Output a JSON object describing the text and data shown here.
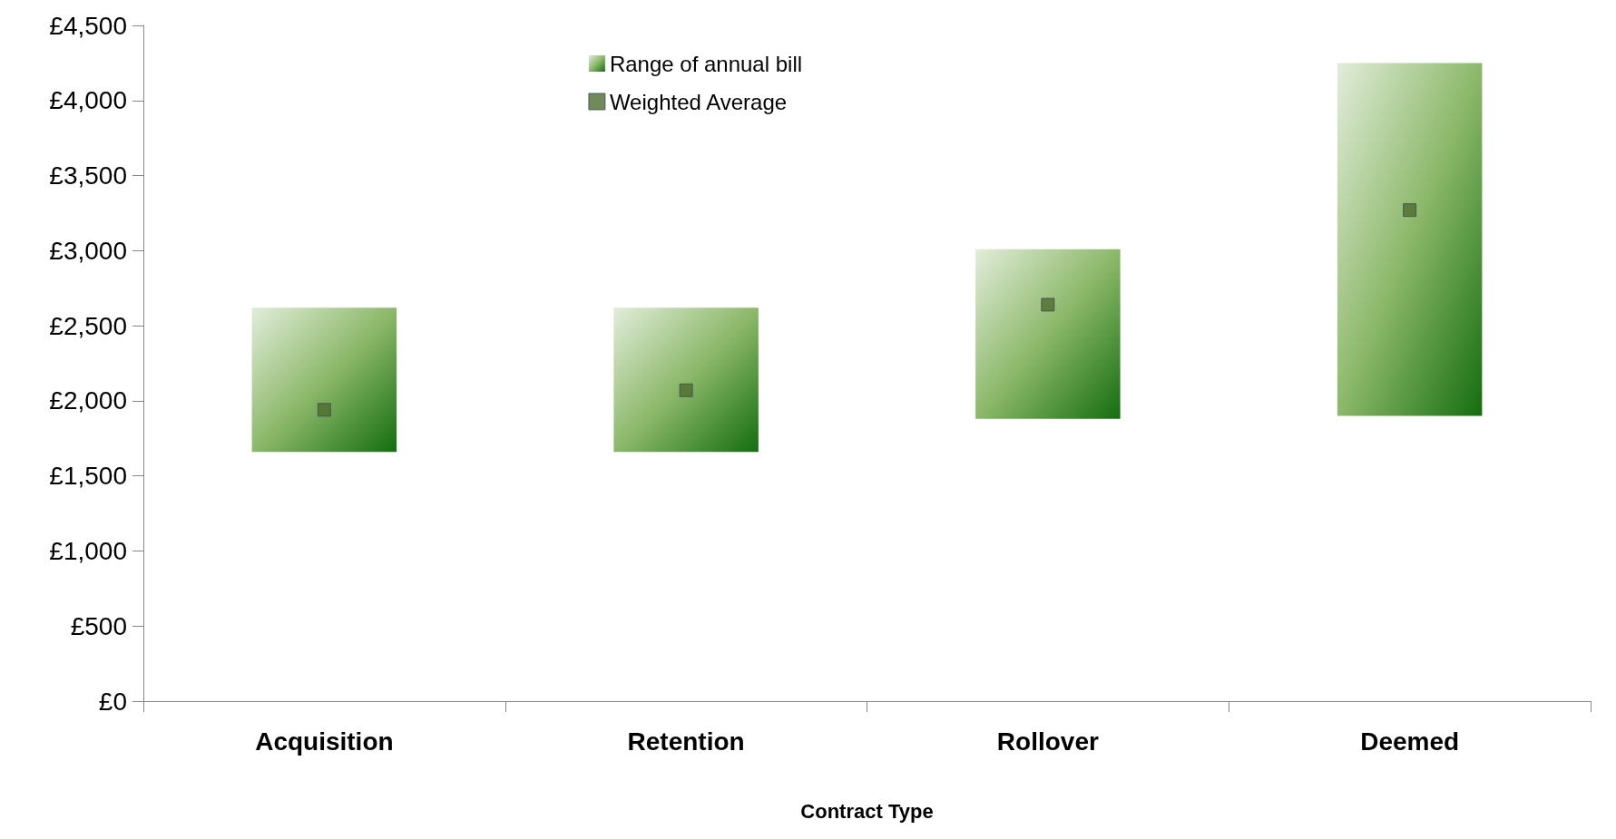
{
  "chart_data": {
    "type": "bar",
    "xlabel": "Contract Type",
    "categories": [
      "Acquisition",
      "Retention",
      "Rollover",
      "Deemed"
    ],
    "series": [
      {
        "name": "Range of annual bill",
        "color": "#8cb86a",
        "base": [
          1660,
          1660,
          1880,
          1900
        ],
        "values": [
          960,
          960,
          1130,
          2350
        ]
      },
      {
        "name": "Weighted Average",
        "type": "scatter",
        "color": "#4f6b2e",
        "values": [
          1940,
          2070,
          2640,
          3270
        ]
      }
    ],
    "marker": "square",
    "legend": "top",
    "grid": false,
    "ylim": [
      0,
      4500
    ],
    "yticks": [
      {
        "value": 0,
        "label": "£0"
      },
      {
        "value": 500,
        "label": "£500"
      },
      {
        "value": 1000,
        "label": "£1,000"
      },
      {
        "value": 1500,
        "label": "£1,500"
      },
      {
        "value": 2000,
        "label": "£2,000"
      },
      {
        "value": 2500,
        "label": "£2,500"
      },
      {
        "value": 3000,
        "label": "£3,000"
      },
      {
        "value": 3500,
        "label": "£3,500"
      },
      {
        "value": 4000,
        "label": "£4,000"
      },
      {
        "value": 4500,
        "label": "£4,500"
      }
    ]
  }
}
